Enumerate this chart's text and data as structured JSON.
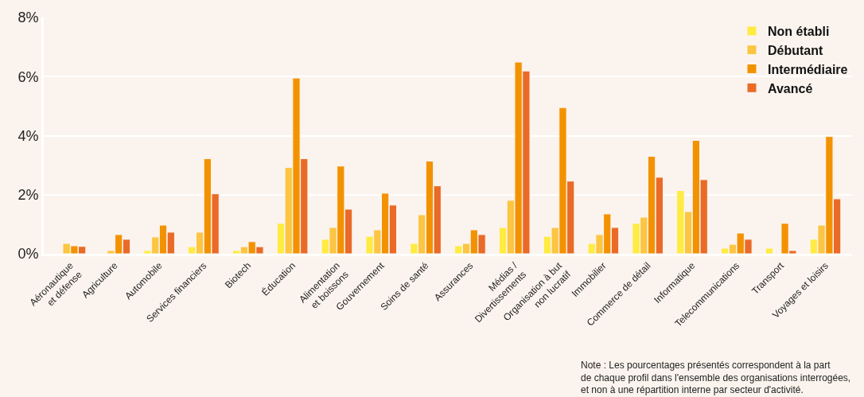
{
  "chart_data": {
    "type": "bar",
    "categories": [
      "Aéronautique\net défense",
      "Agriculture",
      "Automobile",
      "Services financiers",
      "Biotech",
      "Éducation",
      "Alimentation\net boissons",
      "Gouvernement",
      "Soins de santé",
      "Assurances",
      "Médias /\nDivertissements",
      "Organisation à but\nnon lucratif",
      "Immobilier",
      "Commerce de détail",
      "Informatique",
      "Telecommunications",
      "Transport",
      "Voyages et loisirs"
    ],
    "series": [
      {
        "name": "Non établi",
        "color": "#ffeb41",
        "values": [
          null,
          null,
          0.11,
          0.24,
          0.11,
          1.03,
          0.49,
          0.59,
          0.35,
          0.27,
          0.89,
          0.59,
          0.35,
          1.03,
          2.14,
          0.19,
          0.19,
          0.49
        ]
      },
      {
        "name": "Débutant",
        "color": "#fcc542",
        "values": [
          0.35,
          0.11,
          0.57,
          0.73,
          0.24,
          2.92,
          0.89,
          0.81,
          1.32,
          0.35,
          1.81,
          0.89,
          0.65,
          1.24,
          1.43,
          0.32,
          null,
          0.97
        ]
      },
      {
        "name": "Intermédiaire",
        "color": "#f39200",
        "values": [
          0.27,
          0.65,
          0.97,
          3.22,
          0.41,
          5.95,
          2.97,
          2.05,
          3.14,
          0.81,
          6.49,
          4.95,
          1.35,
          3.3,
          3.84,
          0.7,
          1.03,
          3.97
        ]
      },
      {
        "name": "Avancé",
        "color": "#ea6a27",
        "values": [
          0.25,
          0.49,
          0.73,
          2.03,
          0.24,
          3.22,
          1.51,
          1.65,
          2.3,
          0.65,
          6.19,
          2.46,
          0.89,
          2.59,
          2.51,
          0.49,
          0.11,
          1.86
        ]
      }
    ],
    "ylim": [
      0,
      8
    ],
    "yticks": [
      {
        "value": 0,
        "label": "0%"
      },
      {
        "value": 2,
        "label": "2%"
      },
      {
        "value": 4,
        "label": "4%"
      },
      {
        "value": 6,
        "label": "6%"
      },
      {
        "value": 8,
        "label": "8%"
      }
    ],
    "grid": "y",
    "legend": "top right",
    "annotations": [
      "Note : Les pourcentages présentés correspondent à la part\nde chaque profil dans l'ensemble des organisations interrogées,\net non à une répartition interne par secteur d'activité."
    ]
  }
}
